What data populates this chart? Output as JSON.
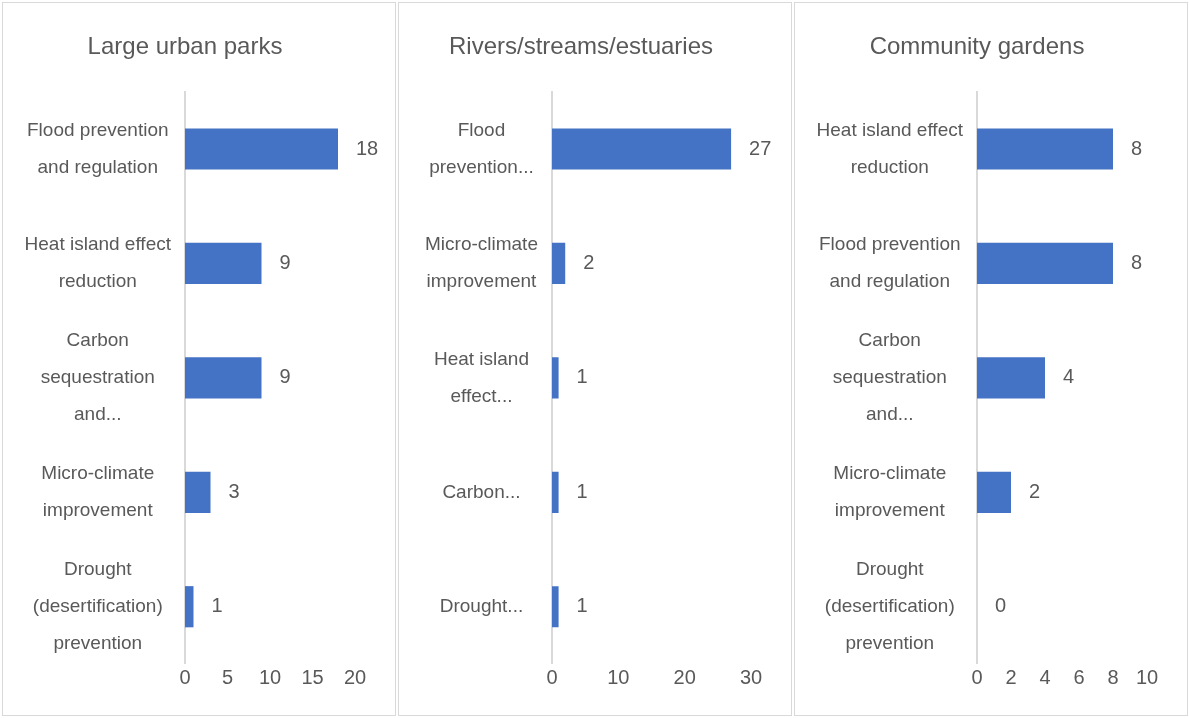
{
  "chart_data": [
    {
      "type": "bar",
      "orientation": "horizontal",
      "title": "Large urban parks",
      "categories": [
        "Flood prevention and regulation",
        "Heat island effect reduction",
        "Carbon sequestration and...",
        "Micro-climate improvement",
        "Drought (desertification) prevention"
      ],
      "values": [
        18,
        9,
        9,
        3,
        1
      ],
      "color": "#4472c4",
      "xlim": [
        0,
        20
      ],
      "xticks": [
        0,
        5,
        10,
        15,
        20
      ],
      "data_labels": true,
      "grid": false,
      "legend": false
    },
    {
      "type": "bar",
      "orientation": "horizontal",
      "title": "Rivers/streams/estuaries",
      "categories": [
        "Flood prevention...",
        "Micro-climate improvement",
        "Heat island effect...",
        "Carbon...",
        "Drought..."
      ],
      "values": [
        27,
        2,
        1,
        1,
        1
      ],
      "color": "#4472c4",
      "xlim": [
        0,
        30
      ],
      "xticks": [
        0,
        10,
        20,
        30
      ],
      "data_labels": true,
      "grid": false,
      "legend": false
    },
    {
      "type": "bar",
      "orientation": "horizontal",
      "title": "Community gardens",
      "categories": [
        "Heat island effect reduction",
        "Flood prevention and regulation",
        "Carbon sequestration and...",
        "Micro-climate improvement",
        "Drought (desertification) prevention"
      ],
      "values": [
        8,
        8,
        4,
        2,
        0
      ],
      "color": "#4472c4",
      "xlim": [
        0,
        10
      ],
      "xticks": [
        0,
        2,
        4,
        6,
        8,
        10
      ],
      "data_labels": true,
      "grid": false,
      "legend": false
    }
  ]
}
